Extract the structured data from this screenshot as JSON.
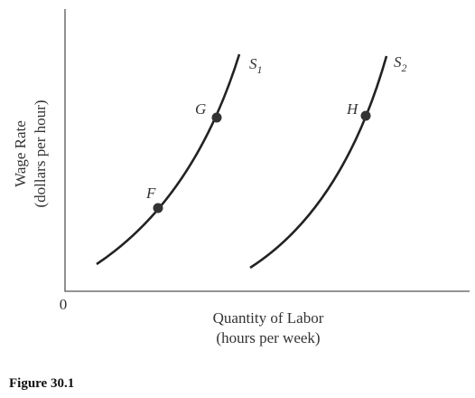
{
  "axes": {
    "y_label": {
      "line1": "Wage Rate",
      "line2": "(dollars per hour)"
    },
    "x_label": {
      "line1": "Quantity of Labor",
      "line2": "(hours per week)"
    },
    "origin": "0"
  },
  "curves": [
    {
      "label": "S",
      "subscript": "1"
    },
    {
      "label": "S",
      "subscript": "2"
    }
  ],
  "points": [
    {
      "label": "F"
    },
    {
      "label": "G"
    },
    {
      "label": "H"
    }
  ],
  "caption": "Figure 30.1"
}
